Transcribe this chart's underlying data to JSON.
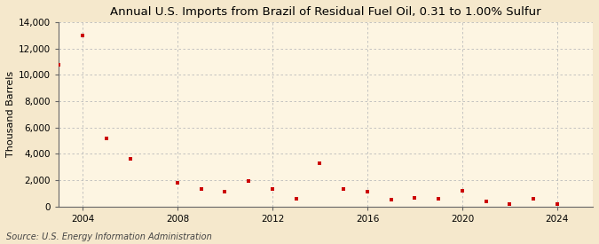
{
  "title": "Annual U.S. Imports from Brazil of Residual Fuel Oil, 0.31 to 1.00% Sulfur",
  "ylabel": "Thousand Barrels",
  "source": "Source: U.S. Energy Information Administration",
  "background_color": "#f5e8cc",
  "plot_background_color": "#fdf5e2",
  "marker_color": "#cc0000",
  "years": [
    2003,
    2004,
    2005,
    2006,
    2008,
    2009,
    2010,
    2011,
    2012,
    2013,
    2014,
    2015,
    2016,
    2017,
    2018,
    2019,
    2020,
    2021,
    2022,
    2023,
    2024
  ],
  "values": [
    10800,
    13000,
    5200,
    3600,
    1800,
    1300,
    1100,
    1900,
    1300,
    600,
    3300,
    1300,
    1100,
    500,
    650,
    600,
    1200,
    350,
    200,
    600,
    200
  ],
  "xlim": [
    2003.0,
    2025.5
  ],
  "ylim": [
    0,
    14000
  ],
  "yticks": [
    0,
    2000,
    4000,
    6000,
    8000,
    10000,
    12000,
    14000
  ],
  "xticks": [
    2004,
    2008,
    2012,
    2016,
    2020,
    2024
  ],
  "grid_color": "#bbbbbb",
  "title_fontsize": 9.5,
  "label_fontsize": 8,
  "tick_fontsize": 7.5,
  "source_fontsize": 7
}
